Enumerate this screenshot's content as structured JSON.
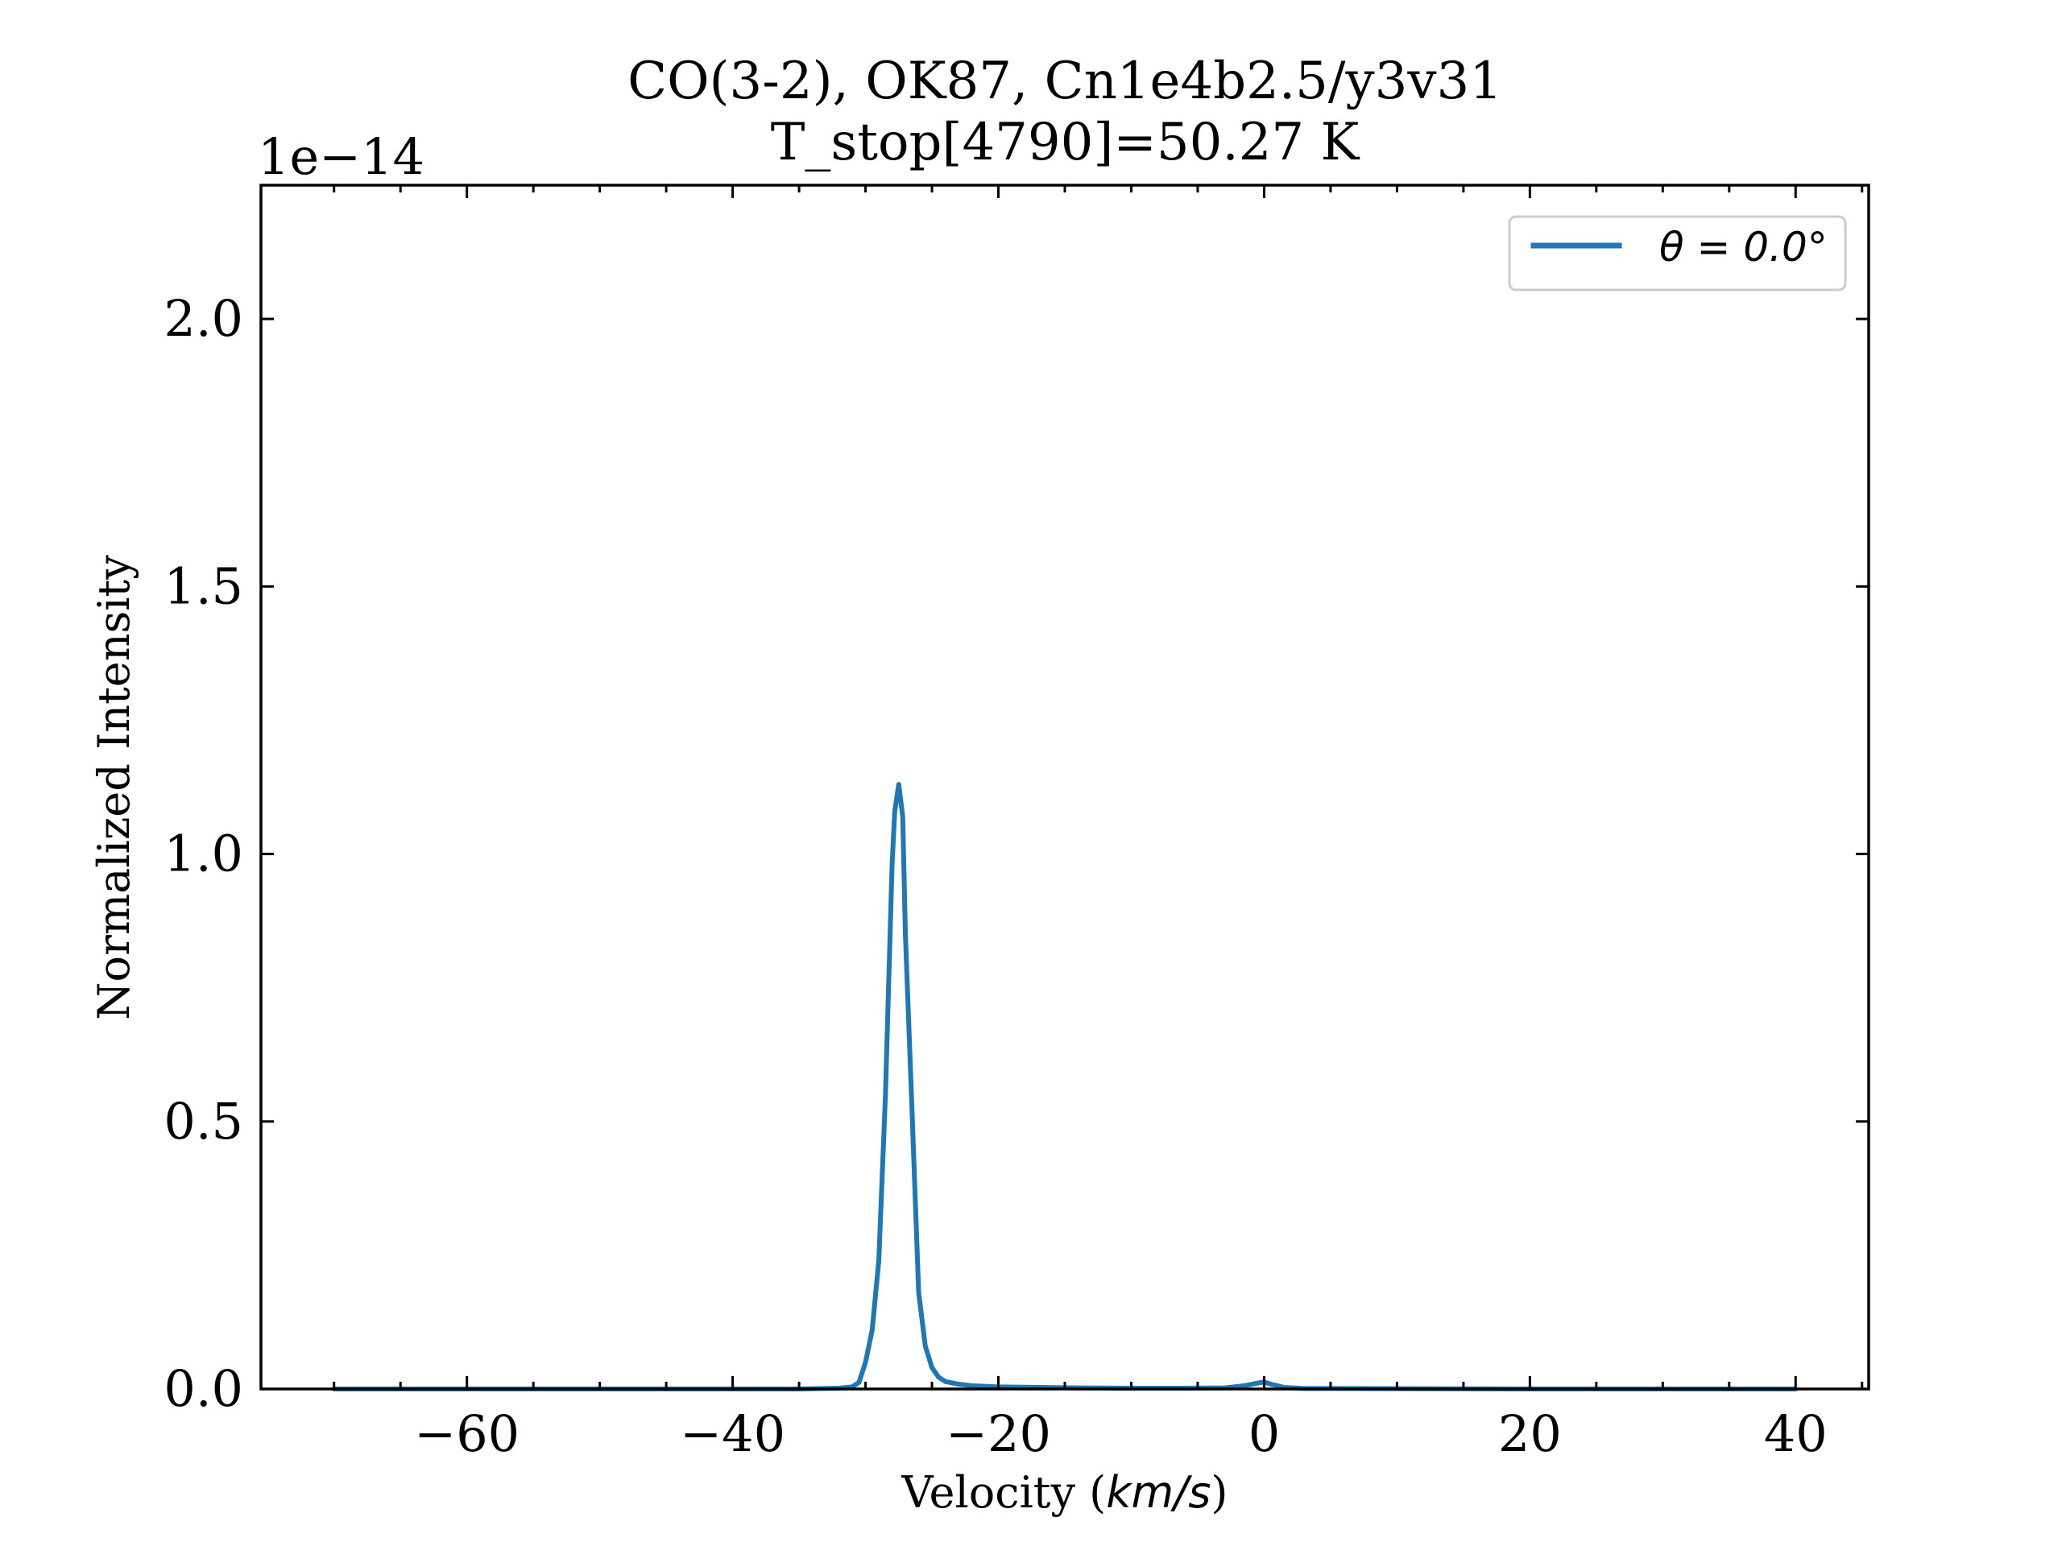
{
  "chart_data": {
    "type": "line",
    "title_line1": "CO(3-2), OK87, Cn1e4b2.5/y3v31",
    "title_line2": "T_stop[4790]=50.27 K",
    "xlabel_text": "Velocity (",
    "xlabel_unit": "km/s",
    "xlabel_close": ")",
    "ylabel": "Normalized Intensity",
    "y_offset_label": "1e−14",
    "xlim": [
      -75.5,
      45.5
    ],
    "ylim": [
      0.0,
      2.25
    ],
    "x_ticks": [
      -60,
      -40,
      -20,
      0,
      20,
      40
    ],
    "x_tick_labels": [
      "−60",
      "−40",
      "−20",
      "0",
      "20",
      "40"
    ],
    "x_minor_ticks": [
      -70,
      -65,
      -55,
      -50,
      -45,
      -35,
      -30,
      -25,
      -15,
      -10,
      -5,
      5,
      10,
      15,
      25,
      30,
      35,
      45
    ],
    "y_ticks": [
      0.0,
      0.5,
      1.0,
      1.5,
      2.0
    ],
    "y_tick_labels": [
      "0.0",
      "0.5",
      "1.0",
      "1.5",
      "2.0"
    ],
    "legend_position": "upper right",
    "grid": false,
    "series": [
      {
        "name": "θ = 0.0°",
        "color": "#1f77b4",
        "x": [
          -70,
          -60,
          -50,
          -40,
          -35,
          -32,
          -31,
          -30.5,
          -30,
          -29.5,
          -29,
          -28.5,
          -28,
          -27.8,
          -27.5,
          -27.2,
          -27,
          -26.5,
          -26,
          -25.5,
          -25,
          -24.5,
          -24,
          -23,
          -22,
          -20,
          -17,
          -14,
          -10,
          -6,
          -3,
          -1.5,
          -0.5,
          0,
          0.5,
          1.5,
          3,
          10,
          20,
          30,
          40
        ],
        "y": [
          0.0,
          0.0,
          0.0,
          0.0,
          0.0,
          0.0015,
          0.004,
          0.012,
          0.05,
          0.11,
          0.24,
          0.55,
          0.98,
          1.08,
          1.13,
          1.07,
          0.85,
          0.52,
          0.18,
          0.08,
          0.04,
          0.022,
          0.014,
          0.009,
          0.006,
          0.004,
          0.003,
          0.002,
          0.0015,
          0.0015,
          0.002,
          0.006,
          0.011,
          0.013,
          0.009,
          0.003,
          0.001,
          0.0005,
          0.0,
          0.0,
          0.0
        ]
      }
    ]
  }
}
